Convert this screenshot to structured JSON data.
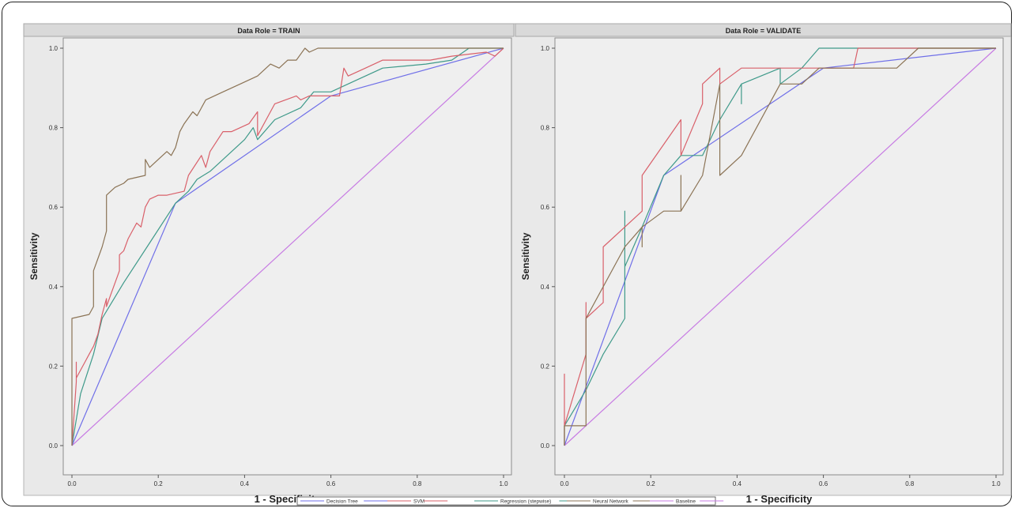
{
  "chart_data": [
    {
      "type": "line",
      "title": "Data Role = TRAIN",
      "xlabel": "1 - Specificity",
      "ylabel": "Sensitivity",
      "xlim": [
        0,
        1
      ],
      "ylim": [
        0,
        1
      ],
      "xticks": [
        "0.0",
        "0.2",
        "0.4",
        "0.6",
        "0.8",
        "1.0"
      ],
      "yticks": [
        "0.0",
        "0.2",
        "0.4",
        "0.6",
        "0.8",
        "1.0"
      ],
      "grid": false,
      "series": [
        {
          "name": "Decision Tree",
          "color": "#6f6fe8",
          "points": [
            [
              0,
              0
            ],
            [
              0.24,
              0.61
            ],
            [
              0.6,
              0.88
            ],
            [
              1,
              1
            ]
          ]
        },
        {
          "name": "SVM",
          "color": "#d9606a",
          "points": [
            [
              0,
              0
            ],
            [
              0.01,
              0.16
            ],
            [
              0.01,
              0.21
            ],
            [
              0.01,
              0.17
            ],
            [
              0.03,
              0.21
            ],
            [
              0.04,
              0.23
            ],
            [
              0.05,
              0.25
            ],
            [
              0.06,
              0.28
            ],
            [
              0.07,
              0.33
            ],
            [
              0.08,
              0.37
            ],
            [
              0.08,
              0.35
            ],
            [
              0.09,
              0.38
            ],
            [
              0.1,
              0.41
            ],
            [
              0.11,
              0.44
            ],
            [
              0.11,
              0.48
            ],
            [
              0.12,
              0.49
            ],
            [
              0.13,
              0.52
            ],
            [
              0.14,
              0.54
            ],
            [
              0.15,
              0.56
            ],
            [
              0.16,
              0.55
            ],
            [
              0.17,
              0.6
            ],
            [
              0.18,
              0.62
            ],
            [
              0.2,
              0.63
            ],
            [
              0.22,
              0.63
            ],
            [
              0.26,
              0.64
            ],
            [
              0.27,
              0.68
            ],
            [
              0.3,
              0.73
            ],
            [
              0.31,
              0.7
            ],
            [
              0.32,
              0.74
            ],
            [
              0.35,
              0.79
            ],
            [
              0.37,
              0.79
            ],
            [
              0.41,
              0.81
            ],
            [
              0.43,
              0.84
            ],
            [
              0.43,
              0.78
            ],
            [
              0.45,
              0.82
            ],
            [
              0.47,
              0.86
            ],
            [
              0.52,
              0.88
            ],
            [
              0.53,
              0.87
            ],
            [
              0.55,
              0.88
            ],
            [
              0.62,
              0.88
            ],
            [
              0.63,
              0.95
            ],
            [
              0.64,
              0.93
            ],
            [
              0.68,
              0.95
            ],
            [
              0.72,
              0.97
            ],
            [
              0.83,
              0.97
            ],
            [
              0.88,
              0.98
            ],
            [
              0.96,
              0.99
            ],
            [
              0.98,
              0.98
            ],
            [
              1,
              1
            ]
          ]
        },
        {
          "name": "Regression (stepwise)",
          "color": "#3f9a8a",
          "points": [
            [
              0,
              0
            ],
            [
              0.02,
              0.13
            ],
            [
              0.05,
              0.23
            ],
            [
              0.07,
              0.32
            ],
            [
              0.12,
              0.41
            ],
            [
              0.18,
              0.51
            ],
            [
              0.24,
              0.61
            ],
            [
              0.27,
              0.64
            ],
            [
              0.29,
              0.67
            ],
            [
              0.32,
              0.69
            ],
            [
              0.34,
              0.71
            ],
            [
              0.37,
              0.74
            ],
            [
              0.4,
              0.77
            ],
            [
              0.42,
              0.8
            ],
            [
              0.43,
              0.77
            ],
            [
              0.47,
              0.82
            ],
            [
              0.53,
              0.85
            ],
            [
              0.56,
              0.89
            ],
            [
              0.6,
              0.89
            ],
            [
              0.66,
              0.92
            ],
            [
              0.72,
              0.95
            ],
            [
              0.82,
              0.96
            ],
            [
              0.88,
              0.97
            ],
            [
              0.92,
              1
            ],
            [
              1,
              1
            ]
          ]
        },
        {
          "name": "Neural Network",
          "color": "#8b7355",
          "points": [
            [
              0,
              0
            ],
            [
              0,
              0.32
            ],
            [
              0.04,
              0.33
            ],
            [
              0.05,
              0.35
            ],
            [
              0.05,
              0.44
            ],
            [
              0.07,
              0.5
            ],
            [
              0.08,
              0.54
            ],
            [
              0.08,
              0.63
            ],
            [
              0.09,
              0.64
            ],
            [
              0.1,
              0.65
            ],
            [
              0.12,
              0.66
            ],
            [
              0.13,
              0.67
            ],
            [
              0.17,
              0.68
            ],
            [
              0.17,
              0.72
            ],
            [
              0.18,
              0.7
            ],
            [
              0.2,
              0.72
            ],
            [
              0.22,
              0.74
            ],
            [
              0.23,
              0.73
            ],
            [
              0.24,
              0.75
            ],
            [
              0.25,
              0.79
            ],
            [
              0.26,
              0.81
            ],
            [
              0.28,
              0.84
            ],
            [
              0.29,
              0.83
            ],
            [
              0.31,
              0.87
            ],
            [
              0.35,
              0.89
            ],
            [
              0.39,
              0.91
            ],
            [
              0.43,
              0.93
            ],
            [
              0.46,
              0.96
            ],
            [
              0.48,
              0.95
            ],
            [
              0.5,
              0.97
            ],
            [
              0.52,
              0.97
            ],
            [
              0.54,
              1
            ],
            [
              0.55,
              0.99
            ],
            [
              0.57,
              1
            ],
            [
              1,
              1
            ]
          ]
        },
        {
          "name": "Baseline",
          "color": "#c77be3",
          "points": [
            [
              0,
              0
            ],
            [
              1,
              1
            ]
          ]
        }
      ]
    },
    {
      "type": "line",
      "title": "Data Role = VALIDATE",
      "xlabel": "1 - Specificity",
      "ylabel": "Sensitivity",
      "xlim": [
        0,
        1
      ],
      "ylim": [
        0,
        1
      ],
      "xticks": [
        "0.0",
        "0.2",
        "0.4",
        "0.6",
        "0.8",
        "1.0"
      ],
      "yticks": [
        "0.0",
        "0.2",
        "0.4",
        "0.6",
        "0.8",
        "1.0"
      ],
      "grid": false,
      "series": [
        {
          "name": "Decision Tree",
          "color": "#6f6fe8",
          "points": [
            [
              0,
              0
            ],
            [
              0.23,
              0.68
            ],
            [
              0.6,
              0.95
            ],
            [
              1,
              1
            ]
          ]
        },
        {
          "name": "SVM",
          "color": "#d9606a",
          "points": [
            [
              0,
              0
            ],
            [
              0,
              0.18
            ],
            [
              0,
              0.05
            ],
            [
              0.05,
              0.23
            ],
            [
              0.05,
              0.36
            ],
            [
              0.05,
              0.32
            ],
            [
              0.09,
              0.36
            ],
            [
              0.09,
              0.5
            ],
            [
              0.18,
              0.59
            ],
            [
              0.18,
              0.68
            ],
            [
              0.27,
              0.82
            ],
            [
              0.27,
              0.73
            ],
            [
              0.32,
              0.86
            ],
            [
              0.32,
              0.91
            ],
            [
              0.36,
              0.95
            ],
            [
              0.36,
              0.91
            ],
            [
              0.41,
              0.95
            ],
            [
              0.67,
              0.95
            ],
            [
              0.68,
              1
            ],
            [
              1,
              1
            ]
          ]
        },
        {
          "name": "Regression (stepwise)",
          "color": "#3f9a8a",
          "points": [
            [
              0,
              0
            ],
            [
              0,
              0.05
            ],
            [
              0.05,
              0.14
            ],
            [
              0.09,
              0.23
            ],
            [
              0.14,
              0.32
            ],
            [
              0.14,
              0.59
            ],
            [
              0.14,
              0.45
            ],
            [
              0.18,
              0.55
            ],
            [
              0.23,
              0.68
            ],
            [
              0.27,
              0.73
            ],
            [
              0.32,
              0.73
            ],
            [
              0.36,
              0.82
            ],
            [
              0.41,
              0.91
            ],
            [
              0.41,
              0.86
            ],
            [
              0.41,
              0.91
            ],
            [
              0.5,
              0.95
            ],
            [
              0.5,
              0.91
            ],
            [
              0.55,
              0.95
            ],
            [
              0.59,
              1
            ],
            [
              1,
              1
            ]
          ]
        },
        {
          "name": "Neural Network",
          "color": "#8b7355",
          "points": [
            [
              0,
              0
            ],
            [
              0,
              0.05
            ],
            [
              0.05,
              0.05
            ],
            [
              0.05,
              0.32
            ],
            [
              0.14,
              0.5
            ],
            [
              0.18,
              0.55
            ],
            [
              0.18,
              0.5
            ],
            [
              0.18,
              0.55
            ],
            [
              0.23,
              0.59
            ],
            [
              0.27,
              0.59
            ],
            [
              0.27,
              0.68
            ],
            [
              0.27,
              0.59
            ],
            [
              0.32,
              0.68
            ],
            [
              0.36,
              0.91
            ],
            [
              0.36,
              0.68
            ],
            [
              0.41,
              0.73
            ],
            [
              0.5,
              0.91
            ],
            [
              0.55,
              0.91
            ],
            [
              0.59,
              0.95
            ],
            [
              0.77,
              0.95
            ],
            [
              0.82,
              1
            ],
            [
              1,
              1
            ]
          ]
        },
        {
          "name": "Baseline",
          "color": "#c77be3",
          "points": [
            [
              0,
              0
            ],
            [
              1,
              1
            ]
          ]
        }
      ]
    }
  ],
  "legend": [
    {
      "label": "Decision Tree",
      "color": "#6f6fe8"
    },
    {
      "label": "SVM",
      "color": "#d9606a"
    },
    {
      "label": "Regression (stepwise)",
      "color": "#3f9a8a"
    },
    {
      "label": "Neural Network",
      "color": "#8b7355"
    },
    {
      "label": "Baseline",
      "color": "#c77be3"
    }
  ]
}
